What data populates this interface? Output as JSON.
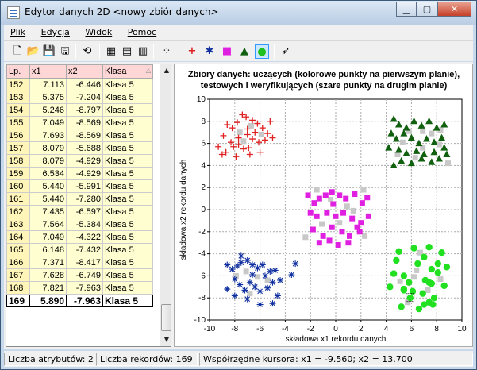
{
  "window": {
    "title": "Edytor danych 2D <nowy zbiór danych>"
  },
  "menu": {
    "items": [
      "Plik",
      "Edycja",
      "Widok",
      "Pomoc"
    ]
  },
  "table": {
    "headers": [
      "Lp.",
      "x1",
      "x2",
      "Klasa"
    ],
    "rows": [
      [
        "152",
        "7.113",
        "-6.446",
        "Klasa 5"
      ],
      [
        "153",
        "5.375",
        "-7.204",
        "Klasa 5"
      ],
      [
        "154",
        "5.246",
        "-8.797",
        "Klasa 5"
      ],
      [
        "155",
        "7.049",
        "-8.569",
        "Klasa 5"
      ],
      [
        "156",
        "7.693",
        "-8.569",
        "Klasa 5"
      ],
      [
        "157",
        "8.079",
        "-5.688",
        "Klasa 5"
      ],
      [
        "158",
        "8.079",
        "-4.929",
        "Klasa 5"
      ],
      [
        "159",
        "6.534",
        "-4.929",
        "Klasa 5"
      ],
      [
        "160",
        "5.440",
        "-5.991",
        "Klasa 5"
      ],
      [
        "161",
        "5.440",
        "-7.280",
        "Klasa 5"
      ],
      [
        "162",
        "7.435",
        "-6.597",
        "Klasa 5"
      ],
      [
        "163",
        "7.564",
        "-5.384",
        "Klasa 5"
      ],
      [
        "164",
        "7.049",
        "-4.322",
        "Klasa 5"
      ],
      [
        "165",
        "6.148",
        "-7.432",
        "Klasa 5"
      ],
      [
        "166",
        "7.371",
        "-8.417",
        "Klasa 5"
      ],
      [
        "167",
        "7.628",
        "-6.749",
        "Klasa 5"
      ],
      [
        "168",
        "7.821",
        "-7.963",
        "Klasa 5"
      ],
      [
        "169",
        "5.890",
        "-7.963",
        "Klasa 5"
      ]
    ]
  },
  "status": {
    "attributes": "Liczba atrybutów: 2",
    "records": "Liczba rekordów: 169",
    "cursor": "Współrzędne kursora: x1 = -9.560; x2 = 13.700"
  },
  "chart_data": {
    "type": "scatter",
    "title": "Zbiory danych: uczących (kolorowe punkty na pierwszym planie), testowych i weryfikujących (szare punkty na drugim planie)",
    "xlabel": "składowa x1 rekordu danych",
    "ylabel": "składowa x2 rekordu danych",
    "xlim": [
      -10,
      10
    ],
    "ylim": [
      -10,
      10
    ],
    "xticks": [
      "-10",
      "-8",
      "-6",
      "-4",
      "-2",
      "0",
      "2",
      "4",
      "6",
      "8",
      "10"
    ],
    "yticks": [
      "-10",
      "-8",
      "-6",
      "-4",
      "-2",
      "0",
      "2",
      "4",
      "6",
      "8",
      "10"
    ],
    "grid": true,
    "series": [
      {
        "marker": "plus",
        "color": "#e02020",
        "points": [
          [
            -8.6,
            7.7
          ],
          [
            -8.2,
            7.4
          ],
          [
            -7.8,
            7.9
          ],
          [
            -7.1,
            8.4
          ],
          [
            -6.6,
            8.1
          ],
          [
            -6.2,
            7.8
          ],
          [
            -5.8,
            7.4
          ],
          [
            -5.4,
            6.9
          ],
          [
            -8.9,
            6.7
          ],
          [
            -8.3,
            6.1
          ],
          [
            -7.7,
            6.5
          ],
          [
            -7.0,
            6.8
          ],
          [
            -6.6,
            6.4
          ],
          [
            -6.1,
            6.1
          ],
          [
            -5.6,
            6.3
          ],
          [
            -5.0,
            6.5
          ],
          [
            -7.7,
            5.9
          ],
          [
            -7.3,
            5.5
          ],
          [
            -6.9,
            5.6
          ],
          [
            -8.7,
            5.2
          ],
          [
            -9.0,
            5.0
          ],
          [
            -8.1,
            5.7
          ],
          [
            -7.0,
            7.3
          ],
          [
            -6.4,
            7.0
          ],
          [
            -5.2,
            8.0
          ],
          [
            -7.4,
            8.6
          ],
          [
            -9.3,
            5.7
          ],
          [
            -6.0,
            5.2
          ],
          [
            -7.9,
            4.8
          ],
          [
            -6.8,
            5.0
          ]
        ]
      },
      {
        "marker": "star",
        "color": "#1030a0",
        "points": [
          [
            -8.6,
            -5.0
          ],
          [
            -8.2,
            -5.4
          ],
          [
            -7.8,
            -5.1
          ],
          [
            -7.5,
            -4.8
          ],
          [
            -7.0,
            -4.6
          ],
          [
            -6.6,
            -5.0
          ],
          [
            -6.2,
            -5.3
          ],
          [
            -5.8,
            -5.0
          ],
          [
            -5.2,
            -5.6
          ],
          [
            -4.8,
            -5.5
          ],
          [
            -8.0,
            -6.3
          ],
          [
            -7.6,
            -6.8
          ],
          [
            -7.2,
            -7.3
          ],
          [
            -6.8,
            -6.6
          ],
          [
            -6.4,
            -7.0
          ],
          [
            -6.0,
            -7.4
          ],
          [
            -5.4,
            -7.1
          ],
          [
            -5.0,
            -6.6
          ],
          [
            -4.4,
            -6.4
          ],
          [
            -3.5,
            -5.9
          ],
          [
            -8.6,
            -7.2
          ],
          [
            -8.0,
            -7.8
          ],
          [
            -7.0,
            -8.1
          ],
          [
            -6.0,
            -8.6
          ],
          [
            -5.0,
            -8.5
          ],
          [
            -7.5,
            -4.2
          ],
          [
            -6.6,
            -5.9
          ],
          [
            -4.6,
            -7.8
          ],
          [
            -3.2,
            -4.9
          ],
          [
            -5.6,
            -6.0
          ]
        ]
      },
      {
        "marker": "square",
        "color": "#e020e0",
        "points": [
          [
            -2.2,
            1.3
          ],
          [
            -1.7,
            0.6
          ],
          [
            -1.3,
            1.0
          ],
          [
            -0.8,
            1.3
          ],
          [
            -0.3,
            1.6
          ],
          [
            0.3,
            1.3
          ],
          [
            0.8,
            1.0
          ],
          [
            1.5,
            1.4
          ],
          [
            2.1,
            0.6
          ],
          [
            2.5,
            1.1
          ],
          [
            -2.0,
            -0.3
          ],
          [
            -1.5,
            -0.6
          ],
          [
            -0.7,
            -0.3
          ],
          [
            0.0,
            -0.6
          ],
          [
            0.6,
            -0.3
          ],
          [
            1.3,
            -0.8
          ],
          [
            2.0,
            -1.2
          ],
          [
            2.6,
            -0.6
          ],
          [
            -1.8,
            -1.8
          ],
          [
            -1.0,
            -2.4
          ],
          [
            -0.3,
            -1.6
          ],
          [
            0.5,
            -2.0
          ],
          [
            1.1,
            -2.4
          ],
          [
            1.9,
            -2.0
          ],
          [
            -1.3,
            -3.0
          ],
          [
            0.2,
            -3.2
          ],
          [
            1.0,
            -3.0
          ],
          [
            -0.2,
            0.5
          ],
          [
            1.7,
            -1.6
          ],
          [
            -0.5,
            -2.8
          ]
        ]
      },
      {
        "marker": "triangle",
        "color": "#106010",
        "points": [
          [
            4.6,
            8.2
          ],
          [
            5.0,
            7.7
          ],
          [
            5.6,
            7.4
          ],
          [
            6.2,
            8.0
          ],
          [
            6.8,
            7.6
          ],
          [
            7.4,
            8.0
          ],
          [
            8.0,
            7.4
          ],
          [
            8.6,
            7.7
          ],
          [
            4.4,
            6.9
          ],
          [
            4.8,
            6.4
          ],
          [
            5.4,
            6.9
          ],
          [
            6.0,
            6.5
          ],
          [
            6.6,
            6.0
          ],
          [
            7.2,
            6.4
          ],
          [
            7.8,
            6.1
          ],
          [
            8.4,
            6.5
          ],
          [
            4.2,
            5.6
          ],
          [
            5.0,
            5.4
          ],
          [
            5.6,
            5.1
          ],
          [
            6.4,
            5.3
          ],
          [
            7.0,
            5.0
          ],
          [
            7.8,
            5.2
          ],
          [
            8.6,
            5.6
          ],
          [
            5.2,
            4.4
          ],
          [
            6.0,
            4.2
          ],
          [
            6.8,
            4.6
          ],
          [
            7.6,
            4.3
          ],
          [
            8.2,
            4.6
          ],
          [
            4.6,
            4.0
          ],
          [
            8.8,
            5.0
          ]
        ]
      },
      {
        "marker": "circle",
        "color": "#20e020",
        "points": [
          [
            7.1,
            -6.4
          ],
          [
            5.4,
            -7.2
          ],
          [
            5.2,
            -8.8
          ],
          [
            7.0,
            -8.6
          ],
          [
            7.7,
            -8.6
          ],
          [
            8.1,
            -5.7
          ],
          [
            8.1,
            -4.9
          ],
          [
            6.5,
            -4.9
          ],
          [
            5.4,
            -6.0
          ],
          [
            5.4,
            -7.3
          ],
          [
            7.4,
            -6.6
          ],
          [
            7.6,
            -5.4
          ],
          [
            7.0,
            -4.3
          ],
          [
            6.1,
            -7.4
          ],
          [
            7.4,
            -8.4
          ],
          [
            7.6,
            -6.7
          ],
          [
            7.8,
            -8.0
          ],
          [
            5.9,
            -8.0
          ],
          [
            4.6,
            -5.8
          ],
          [
            6.2,
            -3.5
          ],
          [
            7.4,
            -3.4
          ],
          [
            8.8,
            -5.2
          ],
          [
            8.6,
            -6.9
          ],
          [
            4.8,
            -4.6
          ],
          [
            5.8,
            -6.6
          ],
          [
            6.9,
            -7.6
          ],
          [
            4.3,
            -7.0
          ],
          [
            8.4,
            -3.9
          ],
          [
            6.6,
            -9.0
          ],
          [
            5.0,
            -3.8
          ]
        ]
      },
      {
        "marker": "square",
        "color": "#c8c8c8",
        "points": [
          [
            -7.6,
            7.0
          ],
          [
            -6.7,
            7.6
          ],
          [
            -5.9,
            6.8
          ],
          [
            -7.3,
            6.2
          ],
          [
            -1.5,
            1.8
          ],
          [
            -0.4,
            0.9
          ],
          [
            0.9,
            0.3
          ],
          [
            2.2,
            1.8
          ],
          [
            -1.1,
            -1.3
          ],
          [
            0.3,
            -1.2
          ],
          [
            1.4,
            -0.1
          ],
          [
            2.3,
            -2.4
          ],
          [
            -2.4,
            -2.5
          ],
          [
            5.8,
            7.1
          ],
          [
            6.9,
            7.1
          ],
          [
            7.6,
            6.9
          ],
          [
            8.3,
            7.2
          ],
          [
            5.3,
            6.1
          ],
          [
            6.9,
            5.6
          ],
          [
            8.2,
            5.9
          ],
          [
            4.9,
            5.0
          ],
          [
            6.3,
            4.7
          ],
          [
            8.9,
            4.2
          ],
          [
            -7.1,
            -5.6
          ],
          [
            -6.2,
            -6.1
          ],
          [
            -7.9,
            -6.0
          ],
          [
            -5.4,
            -6.4
          ],
          [
            -6.8,
            -7.6
          ],
          [
            6.2,
            -6.1
          ],
          [
            5.1,
            -6.5
          ],
          [
            7.3,
            -7.3
          ],
          [
            6.4,
            -5.5
          ],
          [
            8.3,
            -6.3
          ],
          [
            5.7,
            -8.4
          ],
          [
            6.7,
            -3.9
          ]
        ]
      }
    ],
    "cursor_marker": {
      "x": 5.89,
      "y": -7.963
    }
  }
}
